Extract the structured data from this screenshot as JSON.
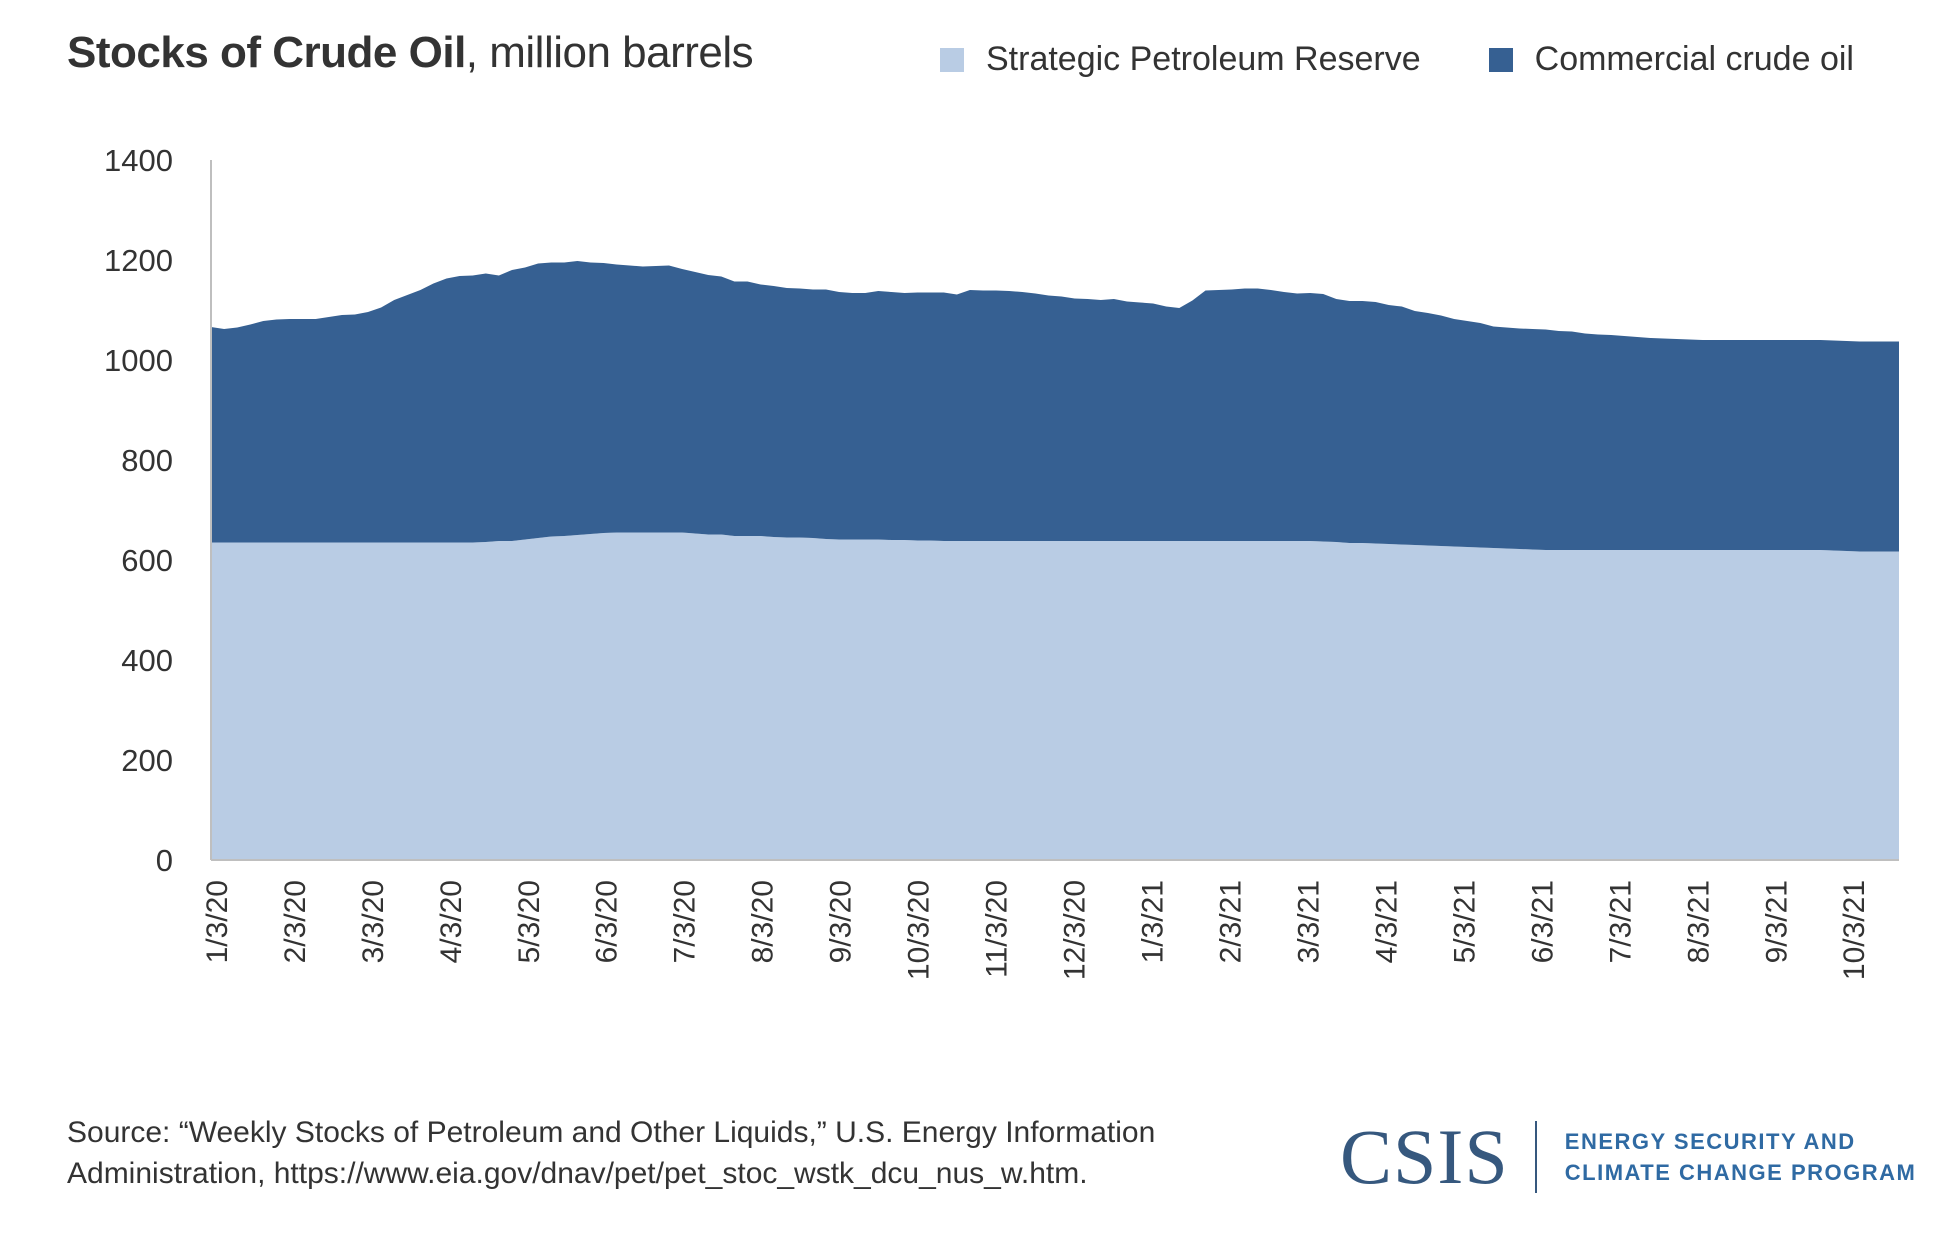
{
  "title": {
    "bold": "Stocks of Crude Oil",
    "rest": ", million barrels"
  },
  "legend": [
    {
      "label": "Strategic Petroleum Reserve",
      "color": "#b9cce4"
    },
    {
      "label": "Commercial crude oil",
      "color": "#366092"
    }
  ],
  "source": {
    "line1": "Source: “Weekly Stocks of Petroleum and Other Liquids,” U.S. Energy Information",
    "line2": "Administration, https://www.eia.gov/dnav/pet/pet_stoc_wstk_dcu_nus_w.htm."
  },
  "logo": {
    "name": "CSIS",
    "line1": "ENERGY SECURITY AND",
    "line2": "CLIMATE CHANGE PROGRAM"
  },
  "chart_data": {
    "type": "area",
    "stacked": true,
    "title": "Stocks of Crude Oil, million barrels",
    "xlabel": "",
    "ylabel": "",
    "ylim": [
      0,
      1400
    ],
    "yticks": [
      0,
      200,
      400,
      600,
      800,
      1000,
      1200,
      1400
    ],
    "xtick_labels": [
      "1/3/20",
      "2/3/20",
      "3/3/20",
      "4/3/20",
      "5/3/20",
      "6/3/20",
      "7/3/20",
      "8/3/20",
      "9/3/20",
      "10/3/20",
      "11/3/20",
      "12/3/20",
      "1/3/21",
      "2/3/21",
      "3/3/21",
      "4/3/21",
      "5/3/21",
      "6/3/21",
      "7/3/21",
      "8/3/21",
      "9/3/21",
      "10/3/21"
    ],
    "x_start": "1/3/20",
    "x_frequency": "weekly",
    "grid": false,
    "legend_position": "top-right",
    "series": [
      {
        "name": "Strategic Petroleum Reserve",
        "values": [
          635,
          635,
          635,
          635,
          635,
          635,
          635,
          635,
          635,
          635,
          635,
          635,
          635,
          635,
          635,
          635,
          635,
          635,
          635,
          635,
          635,
          636,
          638,
          638,
          641,
          644,
          647,
          648,
          650,
          652,
          654,
          655,
          655,
          655,
          655,
          655,
          655,
          653,
          651,
          651,
          648,
          648,
          648,
          646,
          645,
          645,
          644,
          642,
          641,
          641,
          641,
          641,
          640,
          640,
          639,
          639,
          638,
          638,
          638,
          638,
          638,
          638,
          638,
          638,
          638,
          638,
          638,
          638,
          638,
          638,
          638,
          638,
          638,
          638,
          638,
          638,
          638,
          638,
          638,
          638,
          638,
          638,
          638,
          638,
          638,
          637,
          636,
          634,
          634,
          633,
          632,
          631,
          630,
          629,
          628,
          627,
          626,
          625,
          624,
          623,
          622,
          621,
          620,
          620,
          620,
          620,
          620,
          620,
          620,
          620,
          620,
          620,
          620,
          620,
          620,
          620,
          620,
          620,
          620,
          620,
          620,
          620,
          620,
          620,
          619,
          618,
          617,
          617,
          617,
          617
        ]
      },
      {
        "name": "Commercial crude oil",
        "values": [
          431,
          427,
          430,
          436,
          443,
          446,
          447,
          447,
          447,
          451,
          455,
          456,
          461,
          470,
          485,
          495,
          505,
          518,
          528,
          533,
          534,
          537,
          531,
          542,
          544,
          549,
          548,
          547,
          548,
          543,
          540,
          536,
          534,
          532,
          533,
          534,
          527,
          523,
          519,
          516,
          509,
          509,
          503,
          502,
          499,
          498,
          497,
          499,
          495,
          493,
          493,
          497,
          496,
          494,
          496,
          496,
          497,
          493,
          502,
          501,
          501,
          500,
          498,
          495,
          491,
          489,
          485,
          484,
          482,
          484,
          479,
          477,
          475,
          469,
          466,
          481,
          501,
          502,
          503,
          505,
          505,
          502,
          498,
          495,
          496,
          495,
          486,
          484,
          484,
          483,
          478,
          476,
          468,
          465,
          461,
          455,
          452,
          449,
          443,
          442,
          441,
          441,
          441,
          438,
          437,
          433,
          431,
          430,
          428,
          426,
          424,
          423,
          422,
          421,
          420,
          420,
          420,
          420,
          420,
          420,
          420,
          420,
          420,
          420,
          420,
          420,
          420,
          420,
          420,
          420
        ]
      }
    ]
  }
}
